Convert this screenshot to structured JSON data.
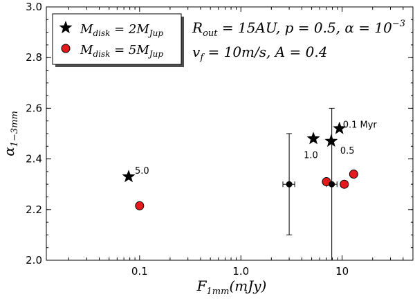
{
  "chart_data": {
    "type": "scatter",
    "x_scale": "log",
    "xlim": [
      0.012,
      50
    ],
    "ylim": [
      2.0,
      3.0
    ],
    "x_ticks": [
      0.1,
      1.0,
      10
    ],
    "x_tick_labels": [
      "0.1",
      "1.0",
      "10"
    ],
    "y_ticks": [
      2.0,
      2.2,
      2.4,
      2.6,
      2.8,
      3.0
    ],
    "y_tick_labels": [
      "2.0",
      "2.2",
      "2.4",
      "2.6",
      "2.8",
      "3.0"
    ],
    "xlabel": {
      "base": "F",
      "sub": "1mm",
      "rest": "(mJy)"
    },
    "ylabel": {
      "base": "α",
      "sub": "1−3mm"
    },
    "legend": {
      "position": "top-left",
      "entries": [
        {
          "marker": "star",
          "color": "#000000",
          "label_base": "M",
          "label_sub": "disk",
          "label_mid": " = 2M",
          "label_sub2": "Jup"
        },
        {
          "marker": "circle",
          "color": "#e41a1c",
          "label_base": "M",
          "label_sub": "disk",
          "label_mid": " = 5M",
          "label_sub2": "Jup"
        }
      ]
    },
    "params_text": {
      "line1": {
        "a": "R",
        "a_sub": "out",
        "b": " = 15AU, p = 0.5, α = 10",
        "b_sup": "−3"
      },
      "line2": {
        "a": "v",
        "a_sub": "f",
        "b": " = 10m/s, A = 0.4"
      }
    },
    "series": [
      {
        "marker": "star",
        "color": "#000000",
        "points": [
          {
            "x": 0.078,
            "y": 2.33,
            "label": "5.0"
          },
          {
            "x": 5.2,
            "y": 2.48,
            "label": "1.0"
          },
          {
            "x": 7.8,
            "y": 2.47,
            "label": "0.5"
          },
          {
            "x": 9.4,
            "y": 2.52,
            "label": "0.1 Myr"
          }
        ]
      },
      {
        "marker": "circle",
        "color": "#e41a1c",
        "points": [
          {
            "x": 0.1,
            "y": 2.215
          },
          {
            "x": 7.0,
            "y": 2.31
          },
          {
            "x": 10.5,
            "y": 2.3
          },
          {
            "x": 13.0,
            "y": 2.34
          }
        ]
      },
      {
        "marker": "observed",
        "color": "#000000",
        "points": [
          {
            "x": 3.0,
            "y": 2.3,
            "xerr": [
              2.6,
              3.4
            ],
            "yerr": [
              2.1,
              2.5
            ]
          },
          {
            "x": 7.9,
            "y": 2.3,
            "xerr": [
              7.0,
              8.9
            ],
            "yerr": [
              2.0,
              2.6
            ]
          }
        ]
      }
    ]
  }
}
